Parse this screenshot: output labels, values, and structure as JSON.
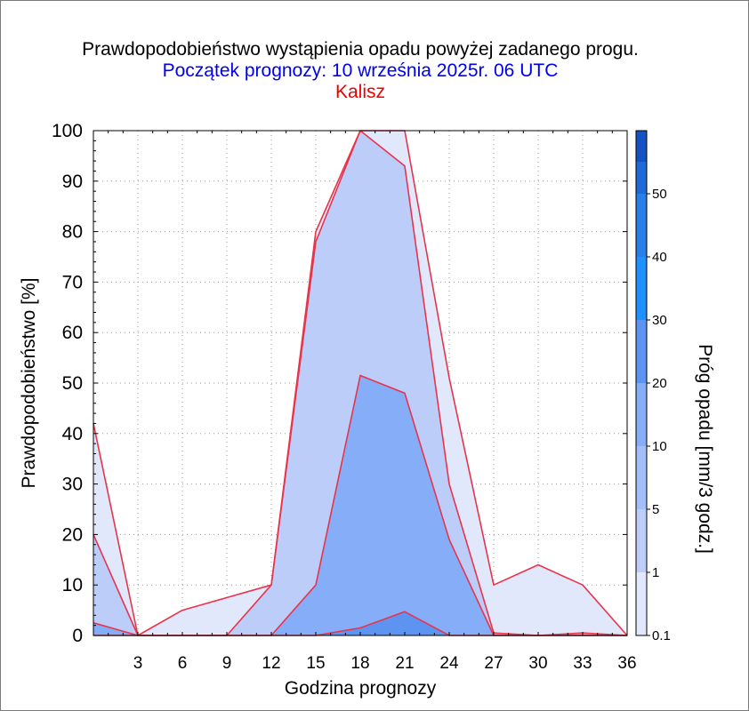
{
  "chart_data": {
    "type": "area",
    "title": "Prawdopodobieństwo wystąpienia opadu powyżej zadanego progu.",
    "subtitle": "Początek prognozy: 10 września 2025r. 06 UTC",
    "location": "Kalisz",
    "xlabel": "Godzina prognozy",
    "ylabel": "Prawdopodobieństwo [%]",
    "colorbar_label": "Próg opadu [mm/3 godz.]",
    "x": [
      0,
      3,
      6,
      9,
      12,
      15,
      18,
      21,
      24,
      27,
      30,
      33,
      36
    ],
    "xticks": [
      "3",
      "6",
      "9",
      "12",
      "15",
      "18",
      "21",
      "24",
      "27",
      "30",
      "33",
      "36"
    ],
    "yticks": [
      "0",
      "10",
      "20",
      "30",
      "40",
      "50",
      "60",
      "70",
      "80",
      "90",
      "100"
    ],
    "xlim": [
      0,
      36
    ],
    "ylim": [
      0,
      100
    ],
    "grid": true,
    "series": [
      {
        "threshold": "0.1",
        "color": "#e2e8fc",
        "values": [
          42,
          0,
          5,
          7.5,
          10,
          80,
          100,
          100,
          51,
          10,
          14,
          10,
          0
        ]
      },
      {
        "threshold": "1",
        "color": "#bccdfa",
        "values": [
          20,
          0,
          0,
          0,
          10,
          78,
          100,
          93,
          30,
          0.5,
          0,
          0.5,
          0
        ]
      },
      {
        "threshold": "5",
        "color": "#85adf8",
        "values": [
          2.5,
          0,
          0,
          0,
          0,
          10,
          51.5,
          48,
          19,
          0,
          0,
          0,
          0
        ]
      },
      {
        "threshold": "10",
        "color": "#5d94f2",
        "values": [
          0,
          0,
          0,
          0,
          0,
          0,
          1.5,
          4.7,
          0,
          0,
          0,
          0,
          0
        ]
      }
    ],
    "colorbar": {
      "ticks": [
        "0.1",
        "1",
        "5",
        "10",
        "20",
        "30",
        "40",
        "50"
      ],
      "colors": [
        "#e2e8fc",
        "#bccdfa",
        "#a4bef9",
        "#85adf8",
        "#5d94f2",
        "#1e90ff",
        "#2a7ee8",
        "#1f6ad8",
        "#1452c4",
        "#0a3ea8"
      ]
    }
  }
}
